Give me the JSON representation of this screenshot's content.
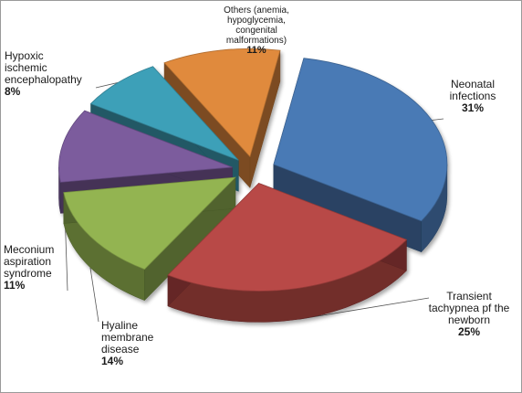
{
  "chart_data": {
    "type": "pie",
    "title": "",
    "slices": [
      {
        "lines": [
          "Neonatal",
          "infections"
        ],
        "pct_label": "31%",
        "value": 31,
        "color": "#4a7ab5"
      },
      {
        "lines": [
          "Transient",
          "tachypnea pf the",
          "newborn"
        ],
        "pct_label": "25%",
        "value": 25,
        "color": "#b84846"
      },
      {
        "lines": [
          "Hyaline",
          "membrane",
          "disease"
        ],
        "pct_label": "14%",
        "value": 14,
        "color": "#93b451"
      },
      {
        "lines": [
          "Meconium",
          "aspiration",
          "syndrome"
        ],
        "pct_label": "11%",
        "value": 11,
        "color": "#7b5b9d"
      },
      {
        "lines": [
          "Hypoxic",
          "ischemic",
          "encephalopathy"
        ],
        "pct_label": "8%",
        "value": 8,
        "color": "#3ea0b8"
      },
      {
        "lines": [
          "Others (anemia,",
          "hypoglycemia,",
          "congenital",
          "malformations)"
        ],
        "pct_label": "11%",
        "value": 11,
        "color": "#e08a3c"
      }
    ]
  }
}
